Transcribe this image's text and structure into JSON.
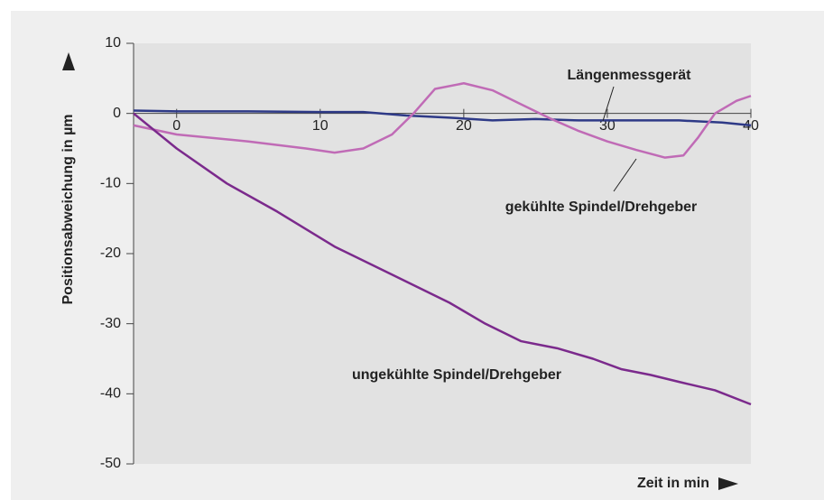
{
  "chart_data": {
    "type": "line",
    "y_label": "Positionsabweichung in µm",
    "x_label": "Zeit in min",
    "xlim": [
      -3,
      40
    ],
    "xticks": [
      0,
      10,
      20,
      30,
      40
    ],
    "ylim": [
      -50,
      10
    ],
    "yticks": [
      10,
      0,
      -10,
      -20,
      -30,
      -40,
      -50
    ],
    "series": [
      {
        "name": "Längenmessgerät",
        "color": "#2e3a87",
        "x": [
          -3,
          0,
          5,
          10,
          13,
          16,
          19,
          22,
          25,
          28,
          31,
          35,
          38,
          40
        ],
        "values": [
          0.4,
          0.3,
          0.3,
          0.2,
          0.2,
          -0.3,
          -0.6,
          -1,
          -0.8,
          -1,
          -1,
          -1,
          -1.3,
          -1.7
        ]
      },
      {
        "name": "gekühlte Spindel/Drehgeber",
        "color": "#c06bb6",
        "x": [
          -3,
          0,
          5,
          9,
          11,
          13,
          15,
          16.5,
          18,
          20,
          22,
          24,
          26,
          28,
          30,
          32,
          34,
          35.3,
          36.3,
          37.5,
          39,
          40
        ],
        "values": [
          -1.7,
          -3,
          -4,
          -5,
          -5.6,
          -5,
          -3,
          0,
          3.5,
          4.3,
          3.3,
          1.3,
          -0.7,
          -2.5,
          -4,
          -5.2,
          -6.3,
          -6,
          -3.5,
          0,
          1.8,
          2.5
        ]
      },
      {
        "name": "ungekühlte Spindel/Drehgeber",
        "color": "#7b2a8c",
        "x": [
          -3,
          0,
          3.5,
          7,
          11,
          15,
          19,
          21.5,
          24,
          26.5,
          29,
          31,
          33,
          35,
          37.5,
          40
        ],
        "values": [
          0,
          -5,
          -10,
          -14,
          -19,
          -23,
          -27,
          -30,
          -32.5,
          -33.5,
          -35,
          -36.5,
          -37.3,
          -38.3,
          -39.5,
          -41.5
        ]
      }
    ]
  }
}
